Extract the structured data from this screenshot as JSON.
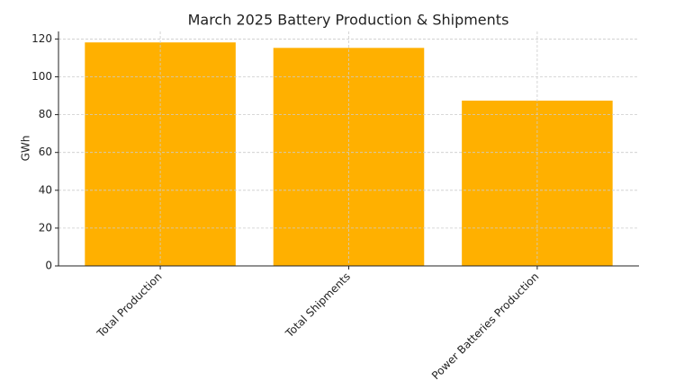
{
  "chart_data": {
    "type": "bar",
    "title": "March 2025 Battery Production & Shipments",
    "ylabel": "GWh",
    "categories": [
      "Total Production",
      "Total Shipments",
      "Power Batteries Production"
    ],
    "values": [
      118.2,
      115.3,
      87.4
    ],
    "color": "#ffb000",
    "ylim": [
      0,
      124
    ],
    "yticks": [
      0,
      20,
      40,
      60,
      80,
      100,
      120
    ],
    "grid": true
  }
}
